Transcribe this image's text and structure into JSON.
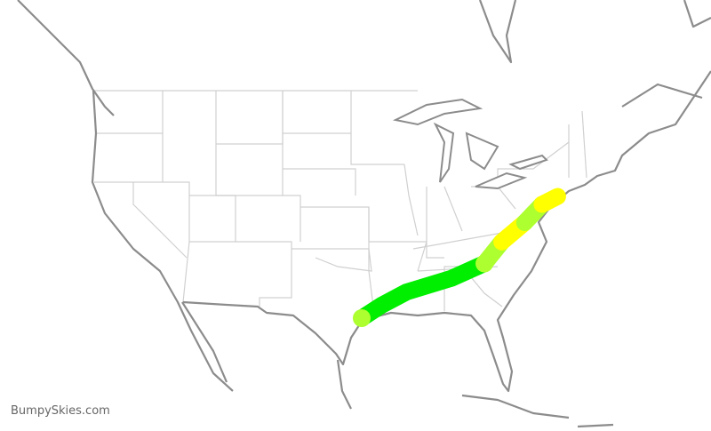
{
  "watermark": "BumpySkies.com",
  "colors": {
    "smooth": "#00ee00",
    "light": "#adff2f",
    "moderate": "#ffff00",
    "coast": "#8c8c8c",
    "state_border": "#d0d0d0"
  },
  "route": {
    "segments": [
      {
        "level": "smooth",
        "points": [
          [
            -95.3,
            29.9
          ],
          [
            -93.2,
            31.0
          ],
          [
            -90.4,
            32.2
          ],
          [
            -85.5,
            33.4
          ],
          [
            -81.9,
            34.7
          ]
        ]
      },
      {
        "level": "light",
        "points": [
          [
            -81.9,
            34.7
          ],
          [
            -80.0,
            36.6
          ]
        ]
      },
      {
        "level": "moderate",
        "points": [
          [
            -80.0,
            36.6
          ],
          [
            -77.5,
            38.3
          ]
        ]
      },
      {
        "level": "light",
        "points": [
          [
            -77.5,
            38.3
          ],
          [
            -75.6,
            39.9
          ]
        ]
      },
      {
        "level": "moderate",
        "points": [
          [
            -75.6,
            39.9
          ],
          [
            -73.9,
            40.6
          ]
        ]
      }
    ],
    "markers": [
      {
        "level": "light",
        "point": [
          -95.3,
          29.9
        ]
      },
      {
        "level": "light",
        "point": [
          -81.9,
          34.7
        ]
      }
    ]
  }
}
